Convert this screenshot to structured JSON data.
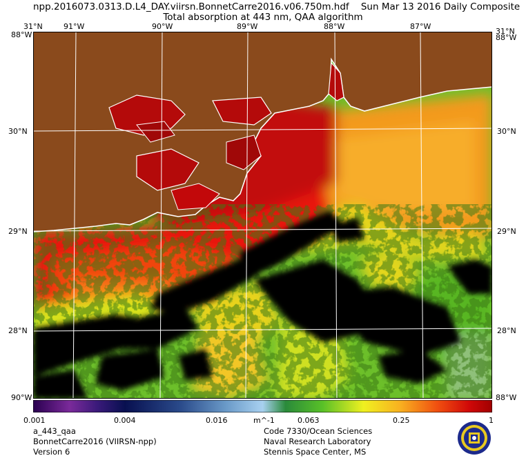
{
  "header": {
    "file": "npp.2016073.0313.D.L4_DAY.viirsn.BonnetCarre2016.v06.750m.hdf",
    "date": "Sun Mar 13 2016 Daily Composite",
    "subtitle": "Total absorption at 443 nm, QAA algorithm"
  },
  "map": {
    "lon_labels": [
      "91°W",
      "90°W",
      "89°W",
      "88°W",
      "87°W"
    ],
    "lat_labels": [
      "30°N",
      "29°N",
      "28°N"
    ],
    "corners": {
      "top_left_lat": "31°N",
      "top_right_lat": "31°N",
      "left_top_lon": "88°W",
      "right_top_lon": "88°W",
      "bottom_left_lon": "90°W",
      "bottom_right_lon": "88°W"
    },
    "colors": {
      "land": "#8a4a1c",
      "coast": "#ffffff",
      "no_data": "#000000"
    }
  },
  "colorbar": {
    "labels": [
      "0.001",
      "0.004",
      "0.016",
      "m^-1",
      "0.063",
      "0.25",
      "1"
    ]
  },
  "footer": {
    "left": [
      "a_443_qaa",
      "BonnetCarre2016 (VIIRSN-npp)",
      "Version 6"
    ],
    "right": [
      "Code 7330/Ocean Sciences",
      "Naval Research Laboratory",
      "Stennis Space Center, MS"
    ]
  },
  "logo": {
    "name": "nrl-seal"
  }
}
